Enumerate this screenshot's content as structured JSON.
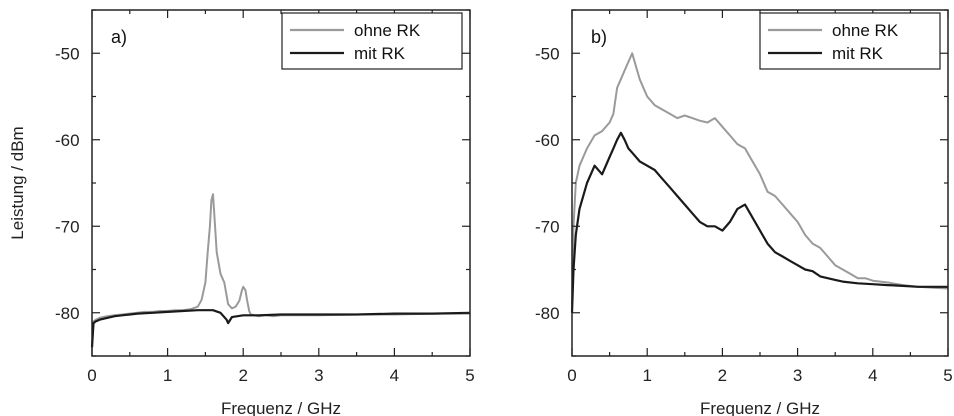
{
  "chart_data": [
    {
      "type": "line",
      "panel_label": "a)",
      "xlabel": "Frequenz / GHz",
      "ylabel": "Leistung / dBm",
      "xlim": [
        0,
        5
      ],
      "ylim": [
        -85,
        -45
      ],
      "xticks": [
        0,
        1,
        2,
        3,
        4,
        5
      ],
      "yticks": [
        -80,
        -70,
        -60,
        -50
      ],
      "grid": false,
      "legend": "top-right",
      "series": [
        {
          "name": "ohne RK",
          "color": "#9a9a9a",
          "x": [
            0,
            0.02,
            0.05,
            0.1,
            0.2,
            0.3,
            0.4,
            0.5,
            0.6,
            0.7,
            0.8,
            0.9,
            1.0,
            1.1,
            1.2,
            1.3,
            1.4,
            1.45,
            1.5,
            1.53,
            1.56,
            1.58,
            1.6,
            1.62,
            1.65,
            1.7,
            1.75,
            1.8,
            1.85,
            1.9,
            1.95,
            1.98,
            2.0,
            2.03,
            2.05,
            2.08,
            2.1,
            2.2,
            2.3,
            2.4,
            2.5,
            3.0,
            3.5,
            4.0,
            4.5,
            5.0
          ],
          "y": [
            -84,
            -81,
            -80.8,
            -80.6,
            -80.4,
            -80.3,
            -80.2,
            -80.1,
            -80.0,
            -79.9,
            -79.9,
            -79.8,
            -79.8,
            -79.7,
            -79.7,
            -79.6,
            -79.3,
            -78.5,
            -76.5,
            -73,
            -70,
            -67,
            -66.3,
            -69,
            -73,
            -75.5,
            -76.5,
            -79,
            -79.5,
            -79.3,
            -78.6,
            -77.5,
            -77.0,
            -77.4,
            -78.5,
            -79.8,
            -80.2,
            -80.4,
            -80.3,
            -80.4,
            -80.3,
            -80.3,
            -80.2,
            -80.2,
            -80.1,
            -80.1
          ]
        },
        {
          "name": "mit RK",
          "color": "#1a1a1a",
          "x": [
            0,
            0.02,
            0.05,
            0.1,
            0.2,
            0.3,
            0.4,
            0.5,
            0.6,
            0.8,
            1.0,
            1.2,
            1.4,
            1.6,
            1.7,
            1.78,
            1.8,
            1.85,
            2.0,
            2.2,
            2.5,
            3.0,
            3.5,
            4.0,
            4.5,
            5.0
          ],
          "y": [
            -84,
            -81.2,
            -81,
            -80.8,
            -80.6,
            -80.4,
            -80.3,
            -80.2,
            -80.1,
            -80.0,
            -79.9,
            -79.8,
            -79.7,
            -79.7,
            -80.0,
            -80.8,
            -81.2,
            -80.5,
            -80.3,
            -80.3,
            -80.2,
            -80.2,
            -80.2,
            -80.1,
            -80.1,
            -80.0
          ]
        }
      ]
    },
    {
      "type": "line",
      "panel_label": "b)",
      "xlabel": "Frequenz / GHz",
      "ylabel": "",
      "xlim": [
        0,
        5
      ],
      "ylim": [
        -85,
        -45
      ],
      "xticks": [
        0,
        1,
        2,
        3,
        4,
        5
      ],
      "yticks": [
        -80,
        -70,
        -60,
        -50
      ],
      "grid": false,
      "legend": "top-right",
      "series": [
        {
          "name": "ohne RK",
          "color": "#9a9a9a",
          "x": [
            0,
            0.02,
            0.05,
            0.1,
            0.2,
            0.3,
            0.4,
            0.5,
            0.55,
            0.6,
            0.65,
            0.7,
            0.75,
            0.8,
            0.85,
            0.9,
            0.95,
            1.0,
            1.1,
            1.2,
            1.3,
            1.4,
            1.5,
            1.6,
            1.7,
            1.8,
            1.9,
            2.0,
            2.1,
            2.2,
            2.3,
            2.4,
            2.5,
            2.6,
            2.7,
            2.8,
            2.9,
            3.0,
            3.1,
            3.2,
            3.3,
            3.4,
            3.5,
            3.6,
            3.7,
            3.8,
            3.9,
            4.0,
            4.2,
            4.4,
            4.6,
            4.8,
            5.0
          ],
          "y": [
            -79,
            -70,
            -65,
            -63,
            -61,
            -59.5,
            -59,
            -58,
            -57,
            -54,
            -53,
            -52,
            -51,
            -50,
            -51.5,
            -53,
            -54,
            -55,
            -56,
            -56.5,
            -57,
            -57.5,
            -57.2,
            -57.5,
            -57.8,
            -58,
            -57.5,
            -58.5,
            -59.5,
            -60.5,
            -61,
            -62.5,
            -64,
            -66,
            -66.5,
            -67.5,
            -68.5,
            -69.5,
            -71,
            -72,
            -72.5,
            -73.5,
            -74.5,
            -75,
            -75.5,
            -76,
            -76,
            -76.3,
            -76.5,
            -76.8,
            -77,
            -77.1,
            -77.2
          ]
        },
        {
          "name": "mit RK",
          "color": "#1a1a1a",
          "x": [
            0,
            0.02,
            0.05,
            0.1,
            0.2,
            0.3,
            0.4,
            0.5,
            0.55,
            0.6,
            0.65,
            0.7,
            0.75,
            0.8,
            0.9,
            1.0,
            1.1,
            1.2,
            1.3,
            1.4,
            1.5,
            1.6,
            1.7,
            1.8,
            1.9,
            2.0,
            2.1,
            2.2,
            2.3,
            2.4,
            2.5,
            2.6,
            2.7,
            2.8,
            2.9,
            3.0,
            3.1,
            3.2,
            3.3,
            3.4,
            3.5,
            3.6,
            3.8,
            4.0,
            4.2,
            4.4,
            4.6,
            4.8,
            5.0
          ],
          "y": [
            -80,
            -75,
            -71,
            -68,
            -65,
            -63,
            -64,
            -62,
            -61,
            -60,
            -59.2,
            -60,
            -61,
            -61.5,
            -62.5,
            -63,
            -63.5,
            -64.5,
            -65.5,
            -66.5,
            -67.5,
            -68.5,
            -69.5,
            -70,
            -70,
            -70.5,
            -69.5,
            -68,
            -67.5,
            -69,
            -70.5,
            -72,
            -73,
            -73.5,
            -74,
            -74.5,
            -75,
            -75.2,
            -75.8,
            -76,
            -76.2,
            -76.4,
            -76.6,
            -76.7,
            -76.8,
            -76.9,
            -77,
            -77,
            -77
          ]
        }
      ]
    }
  ]
}
